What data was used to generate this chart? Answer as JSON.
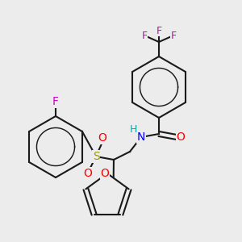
{
  "bg_color": "#ececec",
  "bond_color": "#1a1a1a",
  "bond_lw": 1.5,
  "atom_colors": {
    "F": "#cc00cc",
    "O": "#ff0000",
    "N": "#0000ff",
    "S": "#999900",
    "H": "#00aaaa",
    "C": "#1a1a1a"
  },
  "figsize": [
    3.0,
    3.0
  ],
  "dpi": 100
}
